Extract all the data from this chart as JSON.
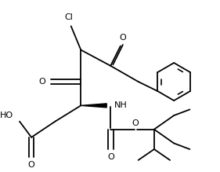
{
  "background": "#ffffff",
  "line_color": "#000000",
  "lw": 1.3,
  "dbo": 0.012,
  "xlim": [
    0.0,
    1.05
  ],
  "ylim": [
    0.18,
    1.0
  ]
}
